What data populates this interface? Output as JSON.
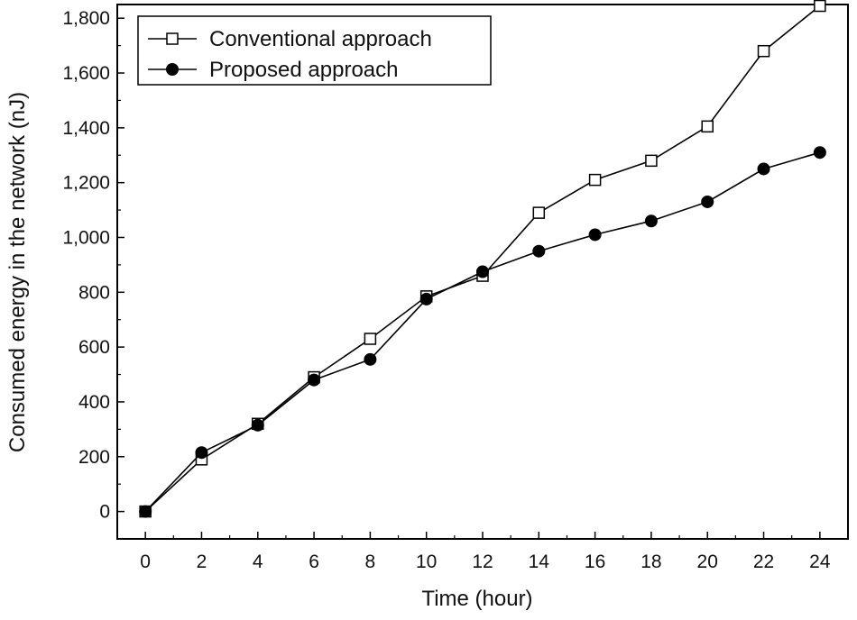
{
  "chart_data": {
    "type": "line",
    "title": "",
    "xlabel": "Time (hour)",
    "ylabel": "Consumed energy in the network (nJ)",
    "x": [
      0,
      2,
      4,
      6,
      8,
      10,
      12,
      14,
      16,
      18,
      20,
      22,
      24
    ],
    "x_tick_labels": [
      "0",
      "2",
      "4",
      "6",
      "8",
      "10",
      "12",
      "14",
      "16",
      "18",
      "20",
      "22",
      "24"
    ],
    "y_ticks": [
      0,
      200,
      400,
      600,
      800,
      1000,
      1200,
      1400,
      1600,
      1800
    ],
    "y_tick_labels": [
      "0",
      "200",
      "400",
      "600",
      "800",
      "1,000",
      "1,200",
      "1,400",
      "1,600",
      "1,800"
    ],
    "xlim": [
      -1,
      25
    ],
    "ylim": [
      -100,
      1850
    ],
    "legend_position": "top-left",
    "grid": false,
    "series": [
      {
        "name": "Conventional approach",
        "marker": "open-square",
        "color": "#000000",
        "values": [
          0,
          190,
          320,
          490,
          630,
          785,
          860,
          1090,
          1210,
          1280,
          1405,
          1680,
          1845
        ]
      },
      {
        "name": "Proposed approach",
        "marker": "filled-circle",
        "color": "#000000",
        "values": [
          0,
          215,
          315,
          480,
          555,
          775,
          875,
          950,
          1010,
          1060,
          1130,
          1250,
          1310
        ]
      }
    ]
  }
}
